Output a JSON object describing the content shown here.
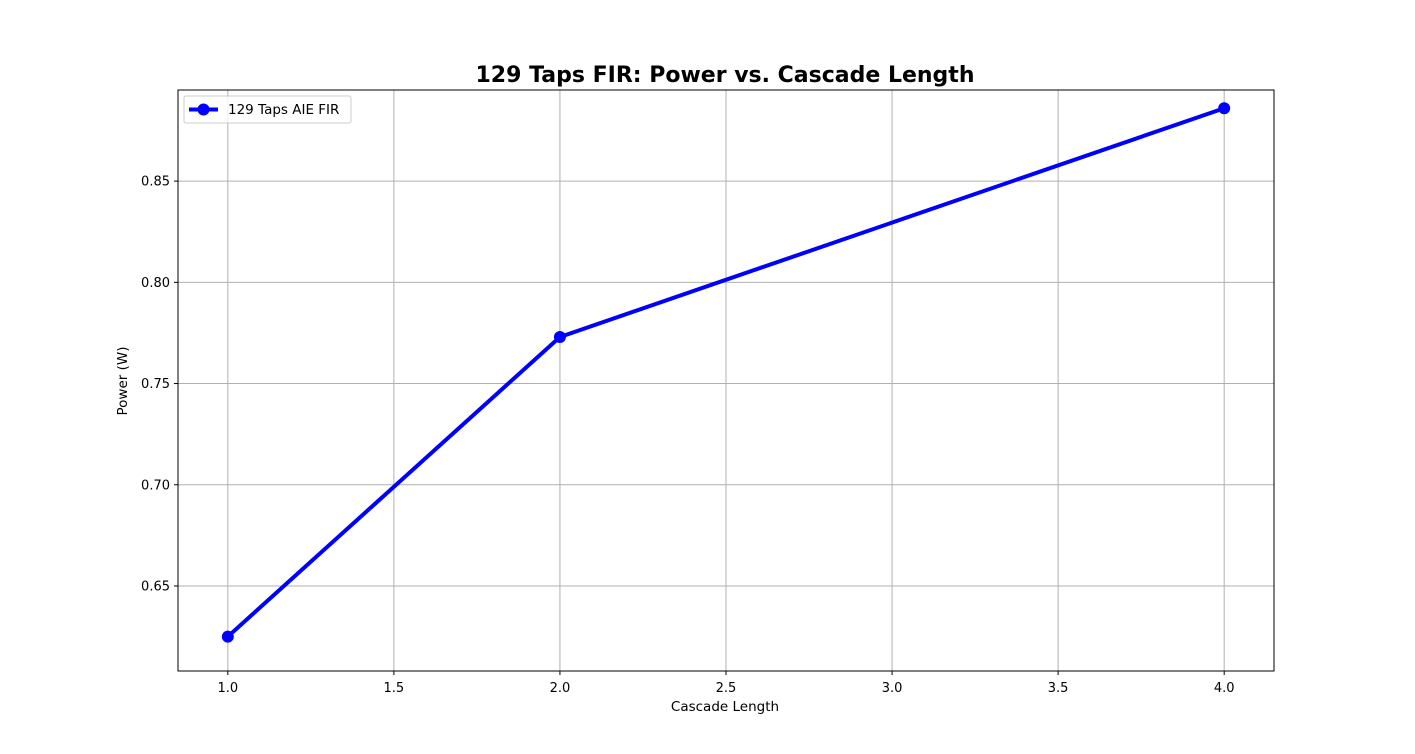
{
  "chart_data": {
    "type": "line",
    "title": "129 Taps FIR: Power vs. Cascade Length",
    "xlabel": "Cascade Length",
    "ylabel": "Power (W)",
    "xlim": [
      0.85,
      4.15
    ],
    "ylim": [
      0.608,
      0.895
    ],
    "xticks": [
      "1.0",
      "1.5",
      "2.0",
      "2.5",
      "3.0",
      "3.5",
      "4.0"
    ],
    "yticks": [
      "0.65",
      "0.70",
      "0.75",
      "0.80",
      "0.85"
    ],
    "grid": true,
    "legend_position": "upper-left",
    "series": [
      {
        "name": "129 Taps AIE FIR",
        "color": "#0000ff",
        "marker": "circle",
        "x": [
          1,
          2,
          4
        ],
        "y": [
          0.625,
          0.773,
          0.886
        ]
      }
    ]
  },
  "colors": {
    "background": "#ffffff",
    "grid": "#b0b0b0",
    "axes": "#000000",
    "series": "#0000ff"
  }
}
